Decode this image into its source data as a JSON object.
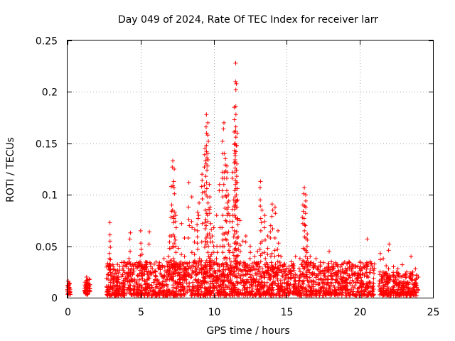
{
  "chart_data": {
    "type": "scatter",
    "title": "Day 049 of 2024, Rate Of TEC Index for receiver larr",
    "xlabel": "GPS time / hours",
    "ylabel": "ROTI / TECUs",
    "xlim": [
      0,
      25
    ],
    "ylim": [
      0,
      0.25
    ],
    "x_ticks": [
      0,
      5,
      10,
      15,
      20,
      25
    ],
    "x_tick_labels": [
      "0",
      "5",
      "10",
      "15",
      "20",
      "25"
    ],
    "y_ticks": [
      0,
      0.05,
      0.1,
      0.15,
      0.2,
      0.25
    ],
    "y_tick_labels": [
      "0",
      "0.05",
      "0.1",
      "0.15",
      "0.2",
      "0.25"
    ],
    "grid": true,
    "marker": "+",
    "marker_color": "#ff0000",
    "series": [
      {
        "x": [
          0.0,
          0.05,
          0.1,
          0.15,
          0.0,
          0.1,
          1.2,
          1.3,
          1.4,
          1.5,
          1.35,
          1.45,
          2.7,
          2.8,
          2.9,
          3.0,
          2.85,
          2.75,
          3.2,
          3.5,
          3.8,
          4.1,
          4.3,
          4.5,
          4.2,
          4.4,
          4.8,
          5.0,
          5.1,
          5.3,
          5.6,
          5.8,
          6.0,
          6.3,
          6.6,
          6.9,
          7.0,
          7.1,
          7.2,
          7.3,
          7.4,
          7.2,
          7.25,
          7.15,
          7.6,
          7.8,
          8.0,
          8.3,
          8.5,
          8.7,
          8.9,
          9.0,
          9.2,
          9.4,
          9.5,
          9.6,
          9.7,
          9.55,
          9.65,
          9.75,
          9.8,
          9.9,
          10.0,
          10.2,
          10.4,
          10.6,
          10.7,
          10.8,
          10.9,
          11.0,
          11.1,
          11.3,
          11.4,
          11.5,
          11.55,
          11.6,
          11.45,
          11.65,
          11.8,
          12.0,
          12.2,
          12.5,
          12.8,
          13.0,
          13.2,
          13.3,
          13.5,
          13.7,
          13.9,
          14.0,
          14.2,
          14.4,
          14.6,
          14.8,
          15.0,
          15.3,
          15.6,
          15.9,
          16.1,
          16.2,
          16.3,
          16.4,
          16.6,
          17.0,
          17.3,
          17.6,
          17.9,
          18.2,
          18.5,
          18.8,
          19.1,
          19.4,
          19.7,
          20.0,
          20.3,
          20.5,
          20.7,
          20.9,
          21.4,
          21.6,
          21.8,
          22.0,
          22.3,
          22.6,
          22.9,
          23.2,
          23.5,
          23.8,
          24.0
        ],
        "y": [
          0.012,
          0.016,
          0.01,
          0.014,
          0.008,
          0.013,
          0.015,
          0.02,
          0.012,
          0.018,
          0.009,
          0.014,
          0.01,
          0.03,
          0.073,
          0.018,
          0.038,
          0.008,
          0.012,
          0.02,
          0.015,
          0.018,
          0.063,
          0.028,
          0.038,
          0.018,
          0.022,
          0.065,
          0.042,
          0.03,
          0.064,
          0.028,
          0.026,
          0.034,
          0.038,
          0.04,
          0.06,
          0.108,
          0.133,
          0.125,
          0.08,
          0.05,
          0.03,
          0.02,
          0.048,
          0.072,
          0.058,
          0.112,
          0.098,
          0.066,
          0.083,
          0.092,
          0.12,
          0.145,
          0.178,
          0.17,
          0.11,
          0.06,
          0.04,
          0.088,
          0.072,
          0.06,
          0.068,
          0.08,
          0.11,
          0.152,
          0.17,
          0.135,
          0.128,
          0.1,
          0.08,
          0.122,
          0.185,
          0.228,
          0.208,
          0.16,
          0.14,
          0.095,
          0.075,
          0.055,
          0.06,
          0.05,
          0.04,
          0.045,
          0.113,
          0.085,
          0.08,
          0.06,
          0.07,
          0.091,
          0.088,
          0.065,
          0.04,
          0.03,
          0.028,
          0.035,
          0.04,
          0.038,
          0.09,
          0.107,
          0.1,
          0.062,
          0.04,
          0.038,
          0.03,
          0.028,
          0.045,
          0.03,
          0.025,
          0.027,
          0.026,
          0.028,
          0.024,
          0.022,
          0.03,
          0.057,
          0.035,
          0.028,
          0.043,
          0.038,
          0.031,
          0.052,
          0.03,
          0.028,
          0.032,
          0.025,
          0.04,
          0.028,
          0.02
        ]
      }
    ],
    "dense_band": {
      "segments": [
        {
          "x_start": 0.0,
          "x_end": 0.2,
          "y_min": 0.003,
          "y_max": 0.015
        },
        {
          "x_start": 1.15,
          "x_end": 1.55,
          "y_min": 0.003,
          "y_max": 0.018
        },
        {
          "x_start": 2.65,
          "x_end": 21.0,
          "y_min": 0.002,
          "y_max": 0.035
        },
        {
          "x_start": 21.3,
          "x_end": 24.0,
          "y_min": 0.002,
          "y_max": 0.025
        }
      ]
    }
  }
}
